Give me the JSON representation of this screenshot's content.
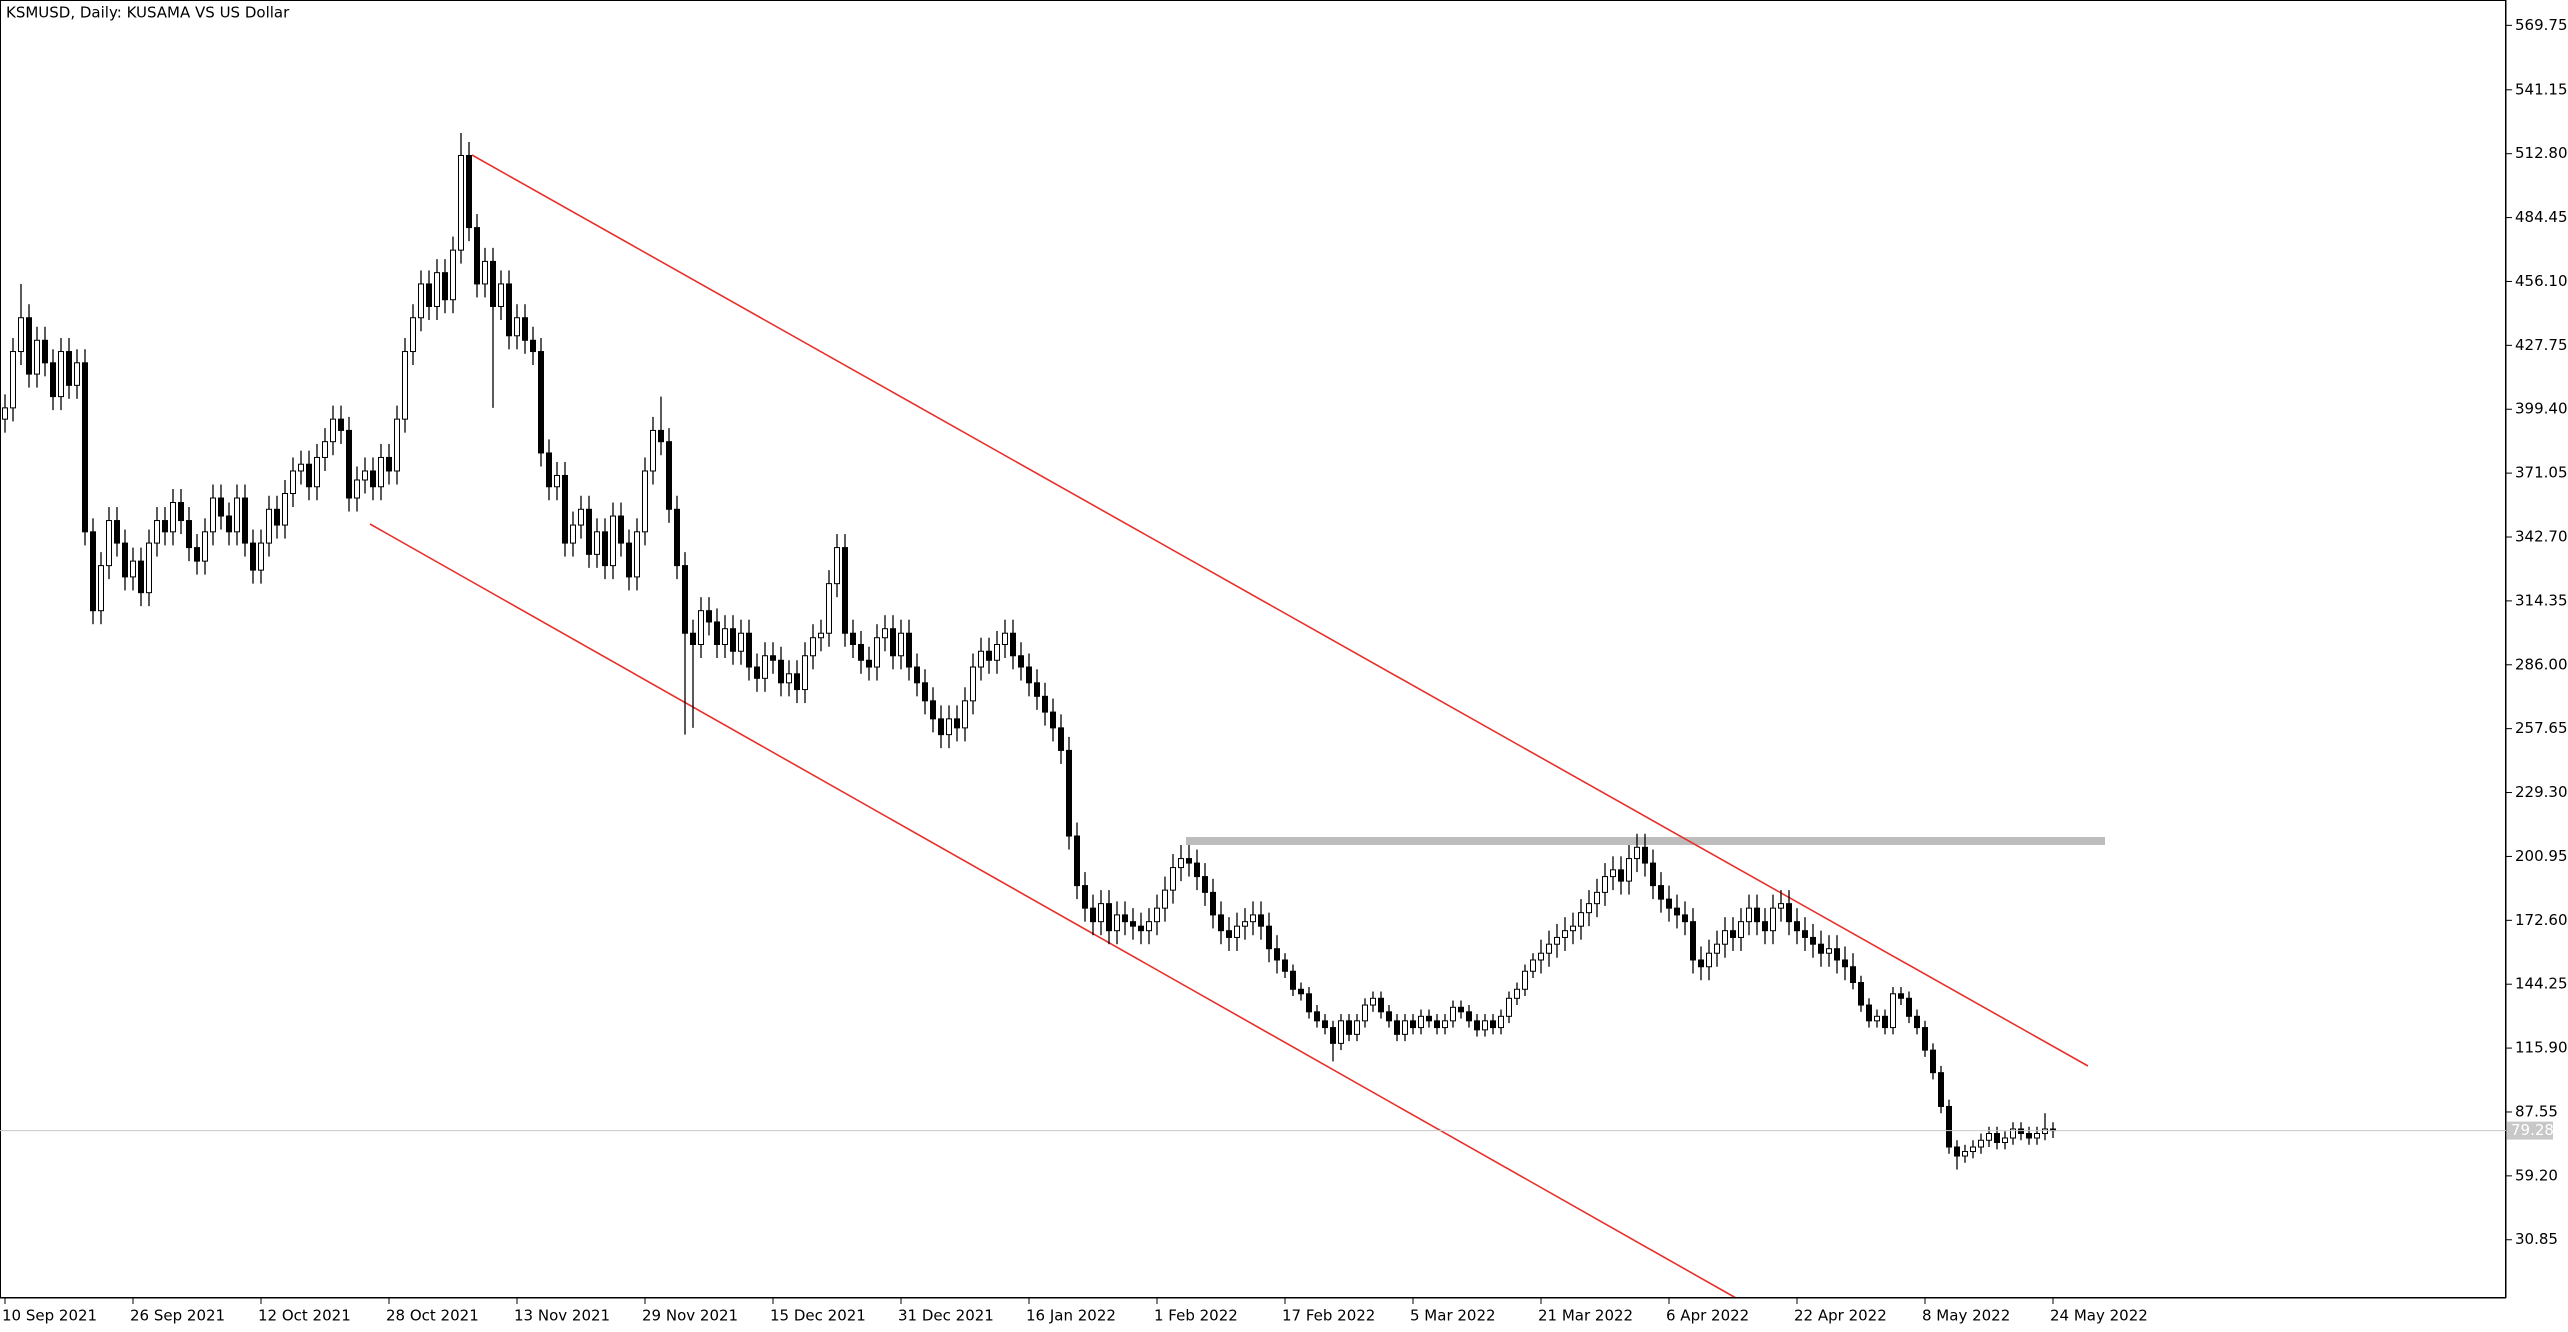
{
  "chart_data": {
    "type": "candlestick",
    "title": "KSMUSD, Daily:  KUSAMA VS US Dollar",
    "categories": [
      "10 Sep 2021",
      null,
      null,
      null,
      null,
      null,
      null,
      null,
      null,
      null,
      null,
      null,
      null,
      null,
      null,
      null,
      "26 Sep 2021",
      null,
      null,
      null,
      null,
      null,
      null,
      null,
      null,
      null,
      null,
      null,
      null,
      null,
      null,
      null,
      "12 Oct 2021",
      null,
      null,
      null,
      null,
      null,
      null,
      null,
      null,
      null,
      null,
      null,
      null,
      null,
      null,
      null,
      "28 Oct 2021",
      null,
      null,
      null,
      null,
      null,
      null,
      null,
      null,
      null,
      null,
      null,
      null,
      null,
      null,
      null,
      "13 Nov 2021",
      null,
      null,
      null,
      null,
      null,
      null,
      null,
      null,
      null,
      null,
      null,
      null,
      null,
      null,
      null,
      "29 Nov 2021",
      null,
      null,
      null,
      null,
      null,
      null,
      null,
      null,
      null,
      null,
      null,
      null,
      null,
      null,
      null,
      "15 Dec 2021",
      null,
      null,
      null,
      null,
      null,
      null,
      null,
      null,
      null,
      null,
      null,
      null,
      null,
      null,
      null,
      "31 Dec 2021",
      null,
      null,
      null,
      null,
      null,
      null,
      null,
      null,
      null,
      null,
      null,
      null,
      null,
      null,
      null,
      "16 Jan 2022",
      null,
      null,
      null,
      null,
      null,
      null,
      null,
      null,
      null,
      null,
      null,
      null,
      null,
      null,
      null,
      "1 Feb 2022",
      null,
      null,
      null,
      null,
      null,
      null,
      null,
      null,
      null,
      null,
      null,
      null,
      null,
      null,
      null,
      "17 Feb 2022",
      null,
      null,
      null,
      null,
      null,
      null,
      null,
      null,
      null,
      null,
      null,
      null,
      null,
      null,
      null,
      "5 Mar 2022",
      null,
      null,
      null,
      null,
      null,
      null,
      null,
      null,
      null,
      null,
      null,
      null,
      null,
      null,
      null,
      "21 Mar 2022",
      null,
      null,
      null,
      null,
      null,
      null,
      null,
      null,
      null,
      null,
      null,
      null,
      null,
      null,
      null,
      "6 Apr 2022",
      null,
      null,
      null,
      null,
      null,
      null,
      null,
      null,
      null,
      null,
      null,
      null,
      null,
      null,
      null,
      "22 Apr 2022",
      null,
      null,
      null,
      null,
      null,
      null,
      null,
      null,
      null,
      null,
      null,
      null,
      null,
      null,
      null,
      "8 May 2022",
      null,
      null,
      null,
      null,
      null,
      null,
      null,
      null,
      null,
      null,
      null,
      null,
      null,
      null,
      null,
      "24 May 2022"
    ],
    "open": [
      395,
      400,
      425,
      440,
      415,
      430,
      420,
      405,
      425,
      410,
      420,
      345,
      310,
      330,
      350,
      340,
      325,
      332,
      318,
      340,
      350,
      345,
      358,
      350,
      338,
      332,
      345,
      360,
      352,
      345,
      360,
      340,
      328,
      340,
      355,
      348,
      362,
      372,
      375,
      365,
      378,
      385,
      395,
      390,
      360,
      368,
      372,
      365,
      378,
      372,
      395,
      425,
      440,
      455,
      445,
      460,
      448,
      470,
      512,
      480,
      455,
      465,
      445,
      455,
      432,
      440,
      430,
      425,
      380,
      365,
      370,
      340,
      348,
      355,
      335,
      345,
      330,
      352,
      340,
      325,
      345,
      372,
      390,
      385,
      355,
      330,
      300,
      295,
      310,
      305,
      295,
      302,
      292,
      300,
      285,
      280,
      290,
      288,
      278,
      282,
      275,
      290,
      298,
      300,
      322,
      338,
      300,
      295,
      288,
      285,
      298,
      302,
      290,
      300,
      285,
      278,
      270,
      262,
      255,
      262,
      258,
      270,
      285,
      292,
      288,
      295,
      300,
      290,
      285,
      278,
      272,
      265,
      258,
      248,
      210,
      188,
      178,
      172,
      180,
      168,
      175,
      172,
      170,
      168,
      172,
      178,
      186,
      196,
      200,
      198,
      192,
      185,
      175,
      168,
      165,
      170,
      172,
      175,
      170,
      160,
      155,
      150,
      142,
      140,
      132,
      128,
      125,
      118,
      128,
      122,
      128,
      135,
      138,
      132,
      128,
      122,
      128,
      125,
      130,
      128,
      125,
      128,
      134,
      132,
      128,
      124,
      128,
      125,
      130,
      138,
      142,
      150,
      155,
      158,
      162,
      165,
      168,
      170,
      176,
      180,
      185,
      192,
      195,
      190,
      200,
      205,
      198,
      188,
      182,
      178,
      175,
      172,
      155,
      152,
      158,
      162,
      168,
      165,
      172,
      178,
      172,
      168,
      178,
      180,
      172,
      168,
      165,
      162,
      158,
      160,
      155,
      152,
      145,
      135,
      128,
      130,
      125,
      140,
      138,
      130,
      125,
      115,
      105,
      90,
      72,
      68,
      70,
      72,
      75,
      78,
      74,
      76,
      80,
      78,
      76,
      78,
      80
    ],
    "high": [
      406,
      431,
      455,
      446,
      436,
      436,
      426,
      431,
      431,
      426,
      426,
      351,
      336,
      356,
      356,
      346,
      338,
      338,
      346,
      356,
      356,
      364,
      364,
      356,
      344,
      351,
      366,
      366,
      358,
      366,
      366,
      346,
      346,
      361,
      361,
      368,
      378,
      381,
      381,
      384,
      391,
      401,
      401,
      396,
      374,
      378,
      378,
      384,
      384,
      401,
      431,
      446,
      461,
      461,
      466,
      466,
      476,
      522,
      518,
      486,
      471,
      471,
      461,
      461,
      446,
      446,
      436,
      431,
      386,
      376,
      376,
      354,
      361,
      361,
      351,
      351,
      358,
      358,
      346,
      351,
      378,
      396,
      405,
      391,
      361,
      336,
      306,
      316,
      316,
      311,
      308,
      308,
      306,
      306,
      291,
      296,
      296,
      294,
      288,
      288,
      296,
      304,
      306,
      328,
      344,
      344,
      306,
      301,
      294,
      304,
      308,
      308,
      306,
      306,
      291,
      284,
      276,
      268,
      268,
      268,
      276,
      291,
      298,
      298,
      301,
      306,
      306,
      296,
      291,
      284,
      278,
      271,
      264,
      254,
      216,
      194,
      184,
      186,
      186,
      181,
      181,
      178,
      176,
      178,
      184,
      192,
      202,
      206,
      206,
      204,
      198,
      191,
      181,
      174,
      176,
      178,
      181,
      181,
      176,
      166,
      158,
      153,
      145,
      143,
      135,
      131,
      128,
      131,
      131,
      131,
      138,
      141,
      141,
      135,
      131,
      131,
      131,
      133,
      133,
      131,
      131,
      137,
      137,
      135,
      131,
      131,
      131,
      133,
      141,
      145,
      153,
      158,
      164,
      168,
      171,
      174,
      176,
      182,
      186,
      191,
      198,
      201,
      201,
      206,
      211,
      211,
      204,
      194,
      188,
      184,
      181,
      178,
      161,
      164,
      168,
      174,
      174,
      178,
      184,
      184,
      178,
      184,
      186,
      186,
      178,
      174,
      171,
      168,
      166,
      166,
      161,
      158,
      148,
      138,
      133,
      133,
      143,
      143,
      141,
      133,
      128,
      118,
      108,
      93,
      75,
      73,
      75,
      78,
      81,
      81,
      79,
      83,
      83,
      81,
      81,
      87,
      83
    ],
    "low": [
      389,
      394,
      419,
      409,
      409,
      414,
      399,
      399,
      404,
      404,
      339,
      304,
      304,
      324,
      334,
      319,
      319,
      312,
      312,
      334,
      339,
      339,
      344,
      332,
      326,
      326,
      339,
      346,
      339,
      339,
      334,
      322,
      322,
      334,
      342,
      342,
      356,
      366,
      359,
      359,
      372,
      379,
      384,
      354,
      354,
      362,
      359,
      359,
      366,
      366,
      389,
      419,
      434,
      439,
      439,
      442,
      442,
      464,
      474,
      449,
      449,
      400,
      439,
      426,
      426,
      424,
      419,
      374,
      359,
      359,
      334,
      334,
      342,
      329,
      329,
      324,
      324,
      334,
      319,
      319,
      339,
      366,
      379,
      349,
      324,
      255,
      258,
      289,
      299,
      289,
      289,
      286,
      286,
      279,
      274,
      274,
      282,
      272,
      272,
      269,
      269,
      284,
      292,
      294,
      316,
      294,
      289,
      282,
      279,
      279,
      292,
      284,
      284,
      279,
      272,
      264,
      256,
      249,
      249,
      252,
      252,
      264,
      279,
      282,
      282,
      289,
      284,
      279,
      272,
      266,
      259,
      252,
      242,
      204,
      182,
      172,
      166,
      166,
      162,
      162,
      166,
      164,
      162,
      162,
      166,
      172,
      180,
      190,
      192,
      186,
      179,
      169,
      162,
      159,
      159,
      164,
      166,
      164,
      154,
      149,
      147,
      139,
      137,
      129,
      125,
      122,
      110,
      115,
      119,
      119,
      125,
      132,
      129,
      125,
      119,
      119,
      122,
      122,
      125,
      122,
      122,
      125,
      129,
      125,
      121,
      121,
      122,
      122,
      127,
      135,
      139,
      147,
      149,
      152,
      156,
      159,
      162,
      164,
      170,
      174,
      179,
      186,
      184,
      184,
      194,
      192,
      182,
      176,
      172,
      169,
      166,
      149,
      146,
      146,
      152,
      156,
      159,
      159,
      166,
      166,
      162,
      162,
      172,
      166,
      162,
      159,
      156,
      152,
      152,
      149,
      146,
      142,
      132,
      125,
      125,
      122,
      122,
      135,
      127,
      122,
      112,
      102,
      87,
      69,
      62,
      65,
      67,
      69,
      72,
      71,
      71,
      73,
      75,
      73,
      73,
      75,
      76
    ],
    "close": [
      400,
      425,
      440,
      415,
      430,
      420,
      405,
      425,
      410,
      420,
      345,
      310,
      330,
      350,
      340,
      325,
      332,
      318,
      340,
      350,
      345,
      358,
      350,
      338,
      332,
      345,
      360,
      352,
      345,
      360,
      340,
      328,
      340,
      355,
      348,
      362,
      372,
      375,
      365,
      378,
      385,
      395,
      390,
      360,
      368,
      372,
      365,
      378,
      372,
      395,
      425,
      440,
      455,
      445,
      460,
      448,
      470,
      512,
      480,
      455,
      465,
      445,
      455,
      432,
      440,
      430,
      425,
      380,
      365,
      370,
      340,
      348,
      355,
      335,
      345,
      330,
      352,
      340,
      325,
      345,
      372,
      390,
      385,
      355,
      330,
      300,
      295,
      310,
      305,
      295,
      302,
      292,
      300,
      285,
      280,
      290,
      288,
      278,
      282,
      275,
      290,
      298,
      300,
      322,
      338,
      300,
      295,
      288,
      285,
      298,
      302,
      290,
      300,
      285,
      278,
      270,
      262,
      255,
      262,
      258,
      270,
      285,
      292,
      288,
      295,
      300,
      290,
      285,
      278,
      272,
      265,
      258,
      248,
      210,
      188,
      178,
      172,
      180,
      168,
      175,
      172,
      170,
      168,
      172,
      178,
      186,
      196,
      200,
      198,
      192,
      185,
      175,
      168,
      165,
      170,
      172,
      175,
      170,
      160,
      155,
      150,
      142,
      140,
      132,
      128,
      125,
      118,
      128,
      122,
      128,
      135,
      138,
      132,
      128,
      122,
      128,
      125,
      130,
      128,
      125,
      128,
      134,
      132,
      128,
      124,
      128,
      125,
      130,
      138,
      142,
      150,
      155,
      158,
      162,
      165,
      168,
      170,
      176,
      180,
      185,
      192,
      195,
      190,
      200,
      205,
      198,
      188,
      182,
      178,
      175,
      172,
      155,
      152,
      158,
      162,
      168,
      165,
      172,
      178,
      172,
      168,
      178,
      180,
      172,
      168,
      165,
      162,
      158,
      160,
      155,
      152,
      145,
      135,
      128,
      130,
      125,
      140,
      138,
      130,
      125,
      115,
      105,
      90,
      72,
      68,
      70,
      72,
      75,
      78,
      74,
      76,
      80,
      78,
      76,
      78,
      80,
      79.28
    ],
    "up_color": "#ffffff",
    "down_color": "#000000",
    "last_price": 79.28,
    "ylim": [
      5,
      581
    ],
    "yticks": [
      569.75,
      541.15,
      {
        "value": 512.8,
        "label": "512.80"
      },
      484.45,
      {
        "value": 456.1,
        "label": "456.10"
      },
      427.75,
      {
        "value": 399.4,
        "label": "399.40"
      },
      371.05,
      {
        "value": 342.7,
        "label": "342.70"
      },
      314.35,
      {
        "value": 286,
        "label": "286.00"
      },
      257.65,
      {
        "value": 229.3,
        "label": "229.30"
      },
      200.95,
      {
        "value": 172.6,
        "label": "172.60"
      },
      144.25,
      {
        "value": 115.9,
        "label": "115.90"
      },
      87.55,
      {
        "value": 59.2,
        "label": "59.20"
      },
      30.85
    ]
  }
}
